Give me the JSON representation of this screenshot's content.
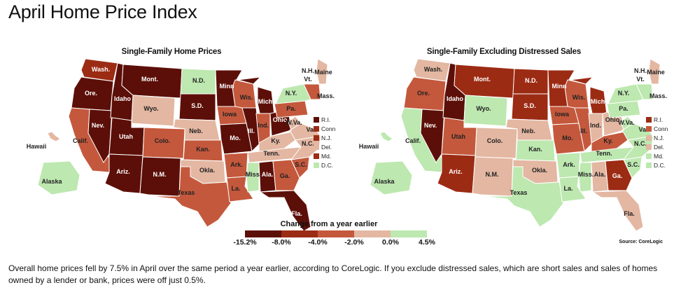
{
  "page": {
    "title": "April Home Price Index",
    "caption": "Overall home prices fell by 7.5% in April over the same period a year earlier, according to CoreLogic. If you exclude distressed sales, which are short sales and sales of homes owned by a lender or bank, prices were off just 0.5%.",
    "source": "Source: CoreLogic"
  },
  "colors": {
    "c1": "#5c0f08",
    "c2": "#9c2b14",
    "c3": "#c4583c",
    "c4": "#e3b7a2",
    "c5": "#bde8b0",
    "outline": "#ffffff"
  },
  "scale": {
    "title": "Change from a year earlier",
    "ticks": [
      "-15.2%",
      "-8.0%",
      "-4.0%",
      "-2.0%",
      "0.0%",
      "4.5%"
    ],
    "bins": [
      "c1",
      "c2",
      "c3",
      "c4",
      "c5"
    ]
  },
  "maps": [
    {
      "title": "Single-Family Home Prices",
      "states": {
        "WA": "c2",
        "OR": "c1",
        "CA": "c3",
        "NV": "c1",
        "ID": "c1",
        "MT": "c1",
        "WY": "c4",
        "UT": "c1",
        "AZ": "c1",
        "CO": "c3",
        "NM": "c1",
        "ND": "c5",
        "SD": "c1",
        "NE": "c4",
        "KS": "c3",
        "OK": "c4",
        "TX": "c3",
        "MN": "c1",
        "IA": "c3",
        "MO": "c1",
        "AR": "c3",
        "LA": "c3",
        "WI": "c3",
        "IL": "c1",
        "MI": "c1",
        "IN": "c3",
        "OH": "c1",
        "KY": "c4",
        "TN": "c4",
        "MS": "c5",
        "AL": "c1",
        "GA": "c3",
        "FL": "c1",
        "SC": "c3",
        "NC": "c4",
        "VA": "c4",
        "WV": "c4",
        "PA": "c3",
        "NY": "c5",
        "ME": "c4",
        "NE6": "c3",
        "AK": "c5",
        "HI": "c4"
      },
      "labels": {
        "WA": "Wash.",
        "OR": "Ore.",
        "CA": "Calif.",
        "NV": "Nev.",
        "ID": "Idaho",
        "MT": "Mont.",
        "WY": "Wyo.",
        "UT": "Utah",
        "AZ": "Ariz.",
        "CO": "Colo.",
        "NM": "N.M.",
        "ND": "N.D.",
        "SD": "S.D.",
        "NE": "Neb.",
        "KS": "Kan.",
        "OK": "Okla.",
        "TX": "Texas",
        "MN": "Minn",
        "IA": "Iowa",
        "MO": "Mo.",
        "AR": "Ark.",
        "LA": "La.",
        "WI": "Wis.",
        "IL": "Ill.",
        "MI": "Mich",
        "IN": "Ind.",
        "OH": "Ohio",
        "KY": "Ky.",
        "TN": "Tenn.",
        "MS": "Miss.",
        "AL": "Ala.",
        "GA": "Ga.",
        "FL": "Fla.",
        "SC": "S.C.",
        "NC": "N.C.",
        "VA": "Va.",
        "WV": "W.Va.",
        "PA": "Pa.",
        "NY": "N.Y.",
        "ME": "Maine",
        "NH": "N.H.",
        "VT": "Vt.",
        "MA": "Mass.",
        "AK": "Alaska",
        "HI": "Hawaii"
      },
      "small_states": [
        {
          "label": "R.I.",
          "color": "c1"
        },
        {
          "label": "Conn.",
          "color": "c2"
        },
        {
          "label": "N.J.",
          "color": "c2"
        },
        {
          "label": "Del.",
          "color": "c4"
        },
        {
          "label": "Md.",
          "color": "c2"
        },
        {
          "label": "D.C.",
          "color": "c5"
        }
      ]
    },
    {
      "title": "Single-Family Excluding Distressed Sales",
      "states": {
        "WA": "c4",
        "OR": "c3",
        "CA": "c5",
        "NV": "c1",
        "ID": "c1",
        "MT": "c2",
        "WY": "c5",
        "UT": "c3",
        "AZ": "c2",
        "CO": "c4",
        "NM": "c4",
        "ND": "c2",
        "SD": "c2",
        "NE": "c4",
        "KS": "c5",
        "OK": "c4",
        "TX": "c5",
        "MN": "c2",
        "IA": "c3",
        "MO": "c3",
        "AR": "c5",
        "LA": "c5",
        "WI": "c3",
        "IL": "c3",
        "MI": "c2",
        "IN": "c4",
        "OH": "c4",
        "KY": "c3",
        "TN": "c5",
        "MS": "c5",
        "AL": "c4",
        "GA": "c2",
        "FL": "c4",
        "SC": "c5",
        "NC": "c5",
        "VA": "c5",
        "WV": "c5",
        "PA": "c5",
        "NY": "c5",
        "ME": "c4",
        "NE6": "c5",
        "AK": "c5",
        "HI": "c5"
      },
      "labels": {
        "WA": "Wash.",
        "OR": "Ore.",
        "CA": "Calif.",
        "NV": "Nev.",
        "ID": "Idaho",
        "MT": "Mont.",
        "WY": "Wyo.",
        "UT": "Utah",
        "AZ": "Ariz.",
        "CO": "Colo.",
        "NM": "N.M.",
        "ND": "N.D.",
        "SD": "S.D.",
        "NE": "Neb.",
        "KS": "Kan.",
        "OK": "Okla.",
        "TX": "Texas",
        "MN": "Minn",
        "IA": "Iowa",
        "MO": "Mo.",
        "AR": "Ark.",
        "LA": "La.",
        "WI": "Wis.",
        "IL": "Ill.",
        "MI": "Mich",
        "IN": "Ind.",
        "OH": "Ohio",
        "KY": "Ky.",
        "TN": "Tenn.",
        "MS": "Miss.",
        "AL": "Ala.",
        "GA": "Ga.",
        "FL": "Fla.",
        "SC": "S.C.",
        "NC": "N.C.",
        "VA": "Va.",
        "WV": "W.Va.",
        "PA": "Pa.",
        "NY": "N.Y.",
        "ME": "Maine",
        "NH": "N.H.",
        "VT": "Vt.",
        "MA": "Mass.",
        "AK": "Alaska",
        "HI": "Hawaii"
      },
      "small_states": [
        {
          "label": "R.I.",
          "color": "c2"
        },
        {
          "label": "Conn.",
          "color": "c3"
        },
        {
          "label": "N.J.",
          "color": "c4"
        },
        {
          "label": "Del.",
          "color": "c4"
        },
        {
          "label": "Md.",
          "color": "c5"
        },
        {
          "label": "D.C.",
          "color": "c5"
        }
      ]
    }
  ]
}
